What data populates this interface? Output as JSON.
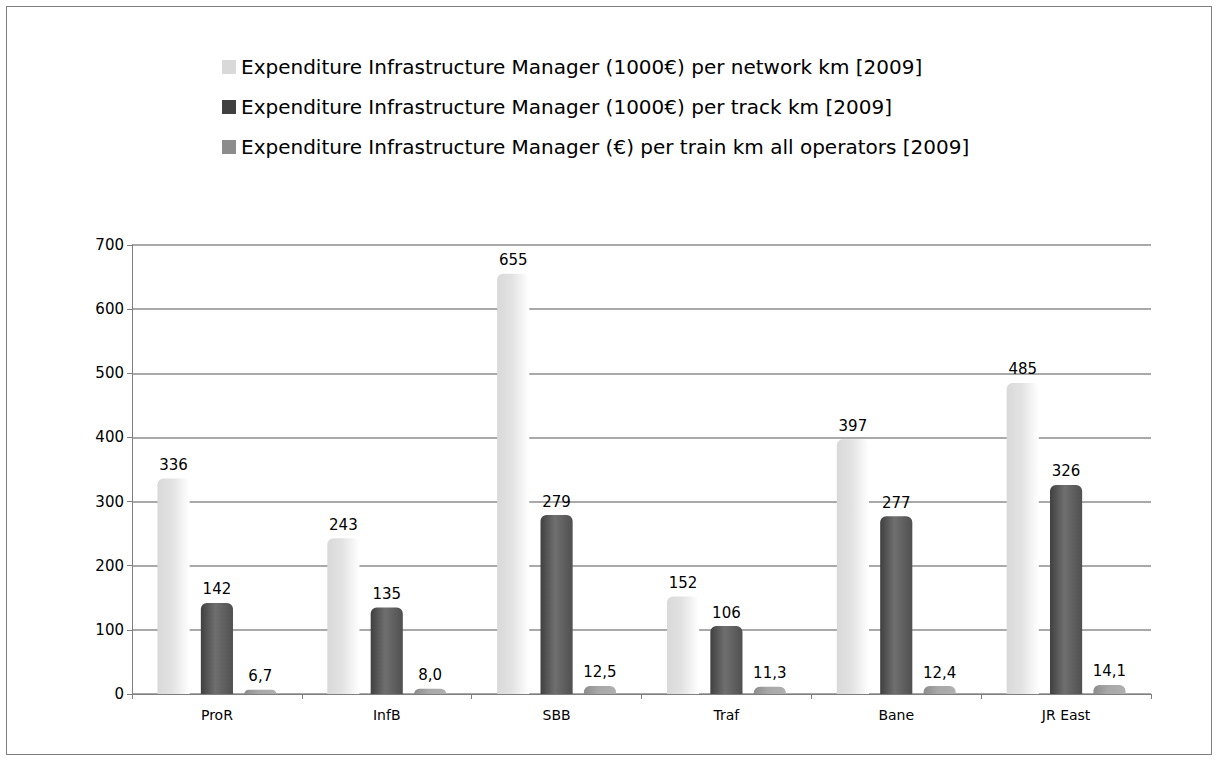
{
  "chart_data": {
    "type": "bar",
    "categories": [
      "ProR",
      "InfB",
      "SBB",
      "Traf",
      "Bane",
      "JR East"
    ],
    "series": [
      {
        "name": "Expenditure Infrastructure Manager (1000€) per network km [2009]",
        "color": "#d9d9d9",
        "values": [
          336,
          243,
          655,
          152,
          397,
          485
        ]
      },
      {
        "name": "Expenditure Infrastructure Manager (1000€) per track km [2009]",
        "color": "#404040",
        "values": [
          142,
          135,
          279,
          106,
          277,
          326
        ]
      },
      {
        "name": "Expenditure Infrastructure Manager (€) per train km all operators [2009]",
        "color": "#8c8c8c",
        "values": [
          6.7,
          8.0,
          12.5,
          11.3,
          12.4,
          14.1
        ],
        "value_labels": [
          "6,7",
          "8,0",
          "12,5",
          "11,3",
          "12,4",
          "14,1"
        ]
      }
    ],
    "ylim": [
      0,
      700
    ],
    "yticks": [
      0,
      100,
      200,
      300,
      400,
      500,
      600,
      700
    ],
    "grid": true,
    "legend": "top",
    "data_labels": true
  }
}
